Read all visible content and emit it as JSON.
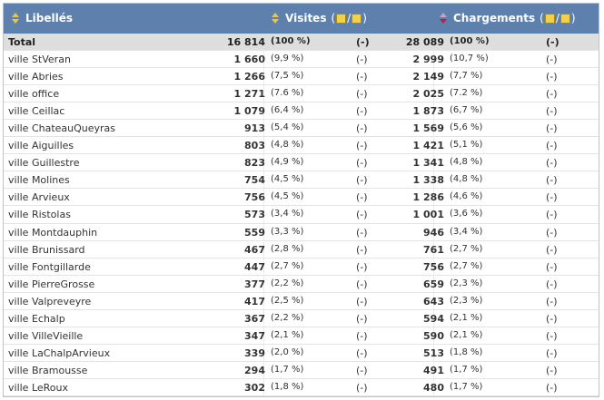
{
  "table": {
    "columns": [
      {
        "label": "Libellés"
      },
      {
        "label": "Visites"
      },
      {
        "label": "Chargements"
      }
    ],
    "toggle": [
      "(",
      "/",
      ")"
    ],
    "rows": [
      [
        "Total",
        "16 814",
        "(100 %)",
        "(-)",
        "28 089",
        "(100 %)",
        "(-)"
      ],
      [
        "ville StVeran",
        "1 660",
        "(9,9 %)",
        "(-)",
        "2 999",
        "(10,7 %)",
        "(-)"
      ],
      [
        "ville Abries",
        "1 266",
        "(7,5 %)",
        "(-)",
        "2 149",
        "(7,7 %)",
        "(-)"
      ],
      [
        "ville office",
        "1 271",
        "(7.6 %)",
        "(-)",
        "2 025",
        "(7.2 %)",
        "(-)"
      ],
      [
        "ville Ceillac",
        "1 079",
        "(6,4 %)",
        "(-)",
        "1 873",
        "(6,7 %)",
        "(-)"
      ],
      [
        "ville ChateauQueyras",
        "913",
        "(5,4 %)",
        "(-)",
        "1 569",
        "(5,6 %)",
        "(-)"
      ],
      [
        "ville Aiguilles",
        "803",
        "(4,8 %)",
        "(-)",
        "1 421",
        "(5,1 %)",
        "(-)"
      ],
      [
        "ville Guillestre",
        "823",
        "(4,9 %)",
        "(-)",
        "1 341",
        "(4,8 %)",
        "(-)"
      ],
      [
        "ville Molines",
        "754",
        "(4,5 %)",
        "(-)",
        "1 338",
        "(4,8 %)",
        "(-)"
      ],
      [
        "ville Arvieux",
        "756",
        "(4,5 %)",
        "(-)",
        "1 286",
        "(4,6 %)",
        "(-)"
      ],
      [
        "ville Ristolas",
        "573",
        "(3,4 %)",
        "(-)",
        "1 001",
        "(3,6 %)",
        "(-)"
      ],
      [
        "ville Montdauphin",
        "559",
        "(3,3 %)",
        "(-)",
        "946",
        "(3,4 %)",
        "(-)"
      ],
      [
        "ville Brunissard",
        "467",
        "(2,8 %)",
        "(-)",
        "761",
        "(2,7 %)",
        "(-)"
      ],
      [
        "ville Fontgillarde",
        "447",
        "(2,7 %)",
        "(-)",
        "756",
        "(2,7 %)",
        "(-)"
      ],
      [
        "ville PierreGrosse",
        "377",
        "(2,2 %)",
        "(-)",
        "659",
        "(2,3 %)",
        "(-)"
      ],
      [
        "ville Valpreveyre",
        "417",
        "(2,5 %)",
        "(-)",
        "643",
        "(2,3 %)",
        "(-)"
      ],
      [
        "ville Echalp",
        "367",
        "(2,2 %)",
        "(-)",
        "594",
        "(2,1 %)",
        "(-)"
      ],
      [
        "ville VilleVieille",
        "347",
        "(2,1 %)",
        "(-)",
        "590",
        "(2,1 %)",
        "(-)"
      ],
      [
        "ville LaChalpArvieux",
        "339",
        "(2,0 %)",
        "(-)",
        "513",
        "(1,8 %)",
        "(-)"
      ],
      [
        "ville Bramousse",
        "294",
        "(1,7 %)",
        "(-)",
        "491",
        "(1,7 %)",
        "(-)"
      ],
      [
        "ville LeRoux",
        "302",
        "(1,8 %)",
        "(-)",
        "480",
        "(1,7 %)",
        "(-)"
      ]
    ]
  }
}
